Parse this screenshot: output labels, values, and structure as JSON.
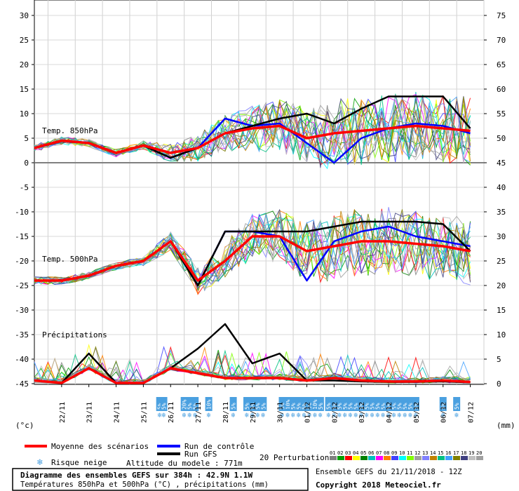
{
  "header": {
    "title": "Diagramme des ensembles GEFS sur 384h : 42.9N 1.1W",
    "subtitle": "Températures 850hPa et 500hPa (°C) , précipitations (mm)",
    "ensemble_info": "Ensemble GEFS du 21/11/2018 - 12Z",
    "copyright": "Copyright 2018 Meteociel.fr"
  },
  "legend": {
    "mean": "Moyenne des scénarios",
    "control": "Run de contrôle",
    "gfs": "Run GFS",
    "snow": "Risque neige",
    "altitude": "Altitude du modele : 771m",
    "perturbations": "20 Perturbations",
    "perturbation_ids": [
      "01",
      "02",
      "03",
      "04",
      "05",
      "06",
      "07",
      "08",
      "09",
      "10",
      "11",
      "12",
      "13",
      "14",
      "15",
      "16",
      "17",
      "18",
      "19",
      "20"
    ],
    "perturbation_colors": [
      "#808080",
      "#00a000",
      "#ff0000",
      "#ffff00",
      "#008000",
      "#00c0c0",
      "#ff00ff",
      "#ff8000",
      "#4040ff",
      "#00ffff",
      "#80ff00",
      "#a0a0a0",
      "#8080ff",
      "#c08000",
      "#00c080",
      "#40a0ff",
      "#808000",
      "#404080",
      "#c0c0c0",
      "#a0a0a0"
    ],
    "colors": {
      "mean": "#ff0000",
      "control": "#0000ff",
      "gfs": "#000000"
    }
  },
  "axes": {
    "left_unit": "(°c)",
    "right_unit": "(mm)",
    "left_ticks": [
      "30",
      "25",
      "20",
      "15",
      "10",
      "5",
      "0",
      "-5",
      "-10",
      "-15",
      "-20",
      "-25",
      "-30",
      "-35",
      "-40",
      "-45"
    ],
    "right_ticks": [
      "75",
      "70",
      "65",
      "60",
      "55",
      "50",
      "45",
      "40",
      "35",
      "30",
      "25",
      "20",
      "15",
      "10",
      "5",
      "0"
    ]
  },
  "panels": {
    "t850": "Temp. 850hPa",
    "t500": "Temp. 500hPa",
    "precip": "Précipitations"
  },
  "chart_data": [
    {
      "type": "line",
      "panel": "Temp. 850hPa",
      "ylabel": "(°c)",
      "y_left_range": [
        -10,
        30
      ],
      "x": [
        "21/11 12Z",
        "22/11",
        "23/11",
        "24/11",
        "25/11",
        "26/11",
        "27/11",
        "28/11",
        "29/11",
        "30/11",
        "01/12",
        "02/12",
        "03/12",
        "04/12",
        "05/12",
        "06/12",
        "07/12"
      ],
      "series": [
        {
          "name": "Moyenne des scénarios",
          "values": [
            3,
            4.5,
            4,
            2,
            3.5,
            2,
            3,
            6,
            7,
            7.5,
            5,
            6,
            6.5,
            7,
            7.5,
            7,
            6.5
          ]
        },
        {
          "name": "Run de contrôle",
          "values": [
            3,
            4.5,
            4,
            2,
            3.5,
            1,
            3,
            9,
            7.5,
            8,
            4,
            0,
            5,
            7,
            8,
            7.5,
            6
          ]
        },
        {
          "name": "Run GFS",
          "values": [
            3,
            4.5,
            4,
            2,
            3.5,
            1,
            3,
            6,
            7.5,
            9,
            10,
            8,
            11,
            13.5,
            13.5,
            13.5,
            7
          ]
        }
      ]
    },
    {
      "type": "line",
      "panel": "Temp. 500hPa",
      "y_left_range": [
        -30,
        -10
      ],
      "x": [
        "21/11 12Z",
        "22/11",
        "23/11",
        "24/11",
        "25/11",
        "26/11",
        "27/11",
        "28/11",
        "29/11",
        "30/11",
        "01/12",
        "02/12",
        "03/12",
        "04/12",
        "05/12",
        "06/12",
        "07/12"
      ],
      "series": [
        {
          "name": "Moyenne des scénarios",
          "values": [
            -24,
            -24,
            -23,
            -21,
            -20,
            -16,
            -24,
            -20,
            -15,
            -15,
            -18,
            -17,
            -16,
            -16,
            -16.5,
            -17,
            -18
          ]
        },
        {
          "name": "Run de contrôle",
          "values": [
            -24,
            -24,
            -23,
            -21,
            -20,
            -16,
            -25,
            -14,
            -14,
            -15,
            -24,
            -16,
            -14,
            -13,
            -15,
            -16,
            -17
          ]
        },
        {
          "name": "Run GFS",
          "values": [
            -24,
            -24,
            -23,
            -21,
            -20,
            -16,
            -25,
            -14,
            -14,
            -14,
            -14,
            -13,
            -12,
            -12,
            -12,
            -12.5,
            -18
          ]
        }
      ]
    },
    {
      "type": "line",
      "panel": "Précipitations",
      "ylabel": "(mm)",
      "y_right_range": [
        0,
        15
      ],
      "x": [
        "21/11 12Z",
        "22/11",
        "23/11",
        "24/11",
        "25/11",
        "26/11",
        "27/11",
        "28/11",
        "29/11",
        "30/11",
        "01/12",
        "02/12",
        "03/12",
        "04/12",
        "05/12",
        "06/12",
        "07/12"
      ],
      "series": [
        {
          "name": "Moyenne des scénarios",
          "values": [
            0.5,
            0,
            3,
            0,
            0,
            3,
            2,
            1,
            1,
            1,
            0.5,
            1,
            0.5,
            0.3,
            0.3,
            0.5,
            0.2
          ]
        },
        {
          "name": "Run GFS",
          "values": [
            0.5,
            0,
            6,
            0,
            0,
            3,
            7,
            12,
            4,
            6,
            0.5,
            0.5,
            0.3,
            0.2,
            0.2,
            0.3,
            0.1
          ]
        }
      ]
    }
  ],
  "dates": [
    "22/11",
    "23/11",
    "24/11",
    "25/11",
    "26/11",
    "27/11",
    "28/11",
    "29/11",
    "30/11",
    "01/12",
    "02/12",
    "03/12",
    "04/12",
    "05/12",
    "06/12",
    "07/12"
  ],
  "snow_risk": [
    {
      "day": 4.6,
      "value": "5%"
    },
    {
      "day": 4.75,
      "value": "5%"
    },
    {
      "day": 5.5,
      "value": "20%"
    },
    {
      "day": 5.7,
      "value": "5%"
    },
    {
      "day": 5.9,
      "value": "5%"
    },
    {
      "day": 6.4,
      "value": "10%"
    },
    {
      "day": 7.3,
      "value": "5%"
    },
    {
      "day": 7.8,
      "value": "5%"
    },
    {
      "day": 8.0,
      "value": "5%"
    },
    {
      "day": 8.2,
      "value": "5%"
    },
    {
      "day": 8.4,
      "value": "5%"
    },
    {
      "day": 9.1,
      "value": "5%"
    },
    {
      "day": 9.3,
      "value": "10%"
    },
    {
      "day": 9.5,
      "value": "5%"
    },
    {
      "day": 9.7,
      "value": "5%"
    },
    {
      "day": 9.9,
      "value": "5%"
    },
    {
      "day": 10.1,
      "value": "5%"
    },
    {
      "day": 10.3,
      "value": "10%"
    },
    {
      "day": 10.5,
      "value": "5%"
    },
    {
      "day": 10.8,
      "value": "5%"
    },
    {
      "day": 11.0,
      "value": "5%"
    },
    {
      "day": 11.2,
      "value": "5%"
    },
    {
      "day": 11.4,
      "value": "5%"
    },
    {
      "day": 11.6,
      "value": "5%"
    },
    {
      "day": 11.8,
      "value": "5%"
    },
    {
      "day": 12.0,
      "value": "5%"
    },
    {
      "day": 12.2,
      "value": "5%"
    },
    {
      "day": 12.4,
      "value": "5%"
    },
    {
      "day": 12.6,
      "value": "5%"
    },
    {
      "day": 12.8,
      "value": "5%"
    },
    {
      "day": 13.0,
      "value": "5%"
    },
    {
      "day": 13.2,
      "value": "5%"
    },
    {
      "day": 13.4,
      "value": "5%"
    },
    {
      "day": 13.6,
      "value": "5%"
    },
    {
      "day": 13.8,
      "value": "5%"
    },
    {
      "day": 14.0,
      "value": "5%"
    },
    {
      "day": 15.0,
      "value": "5%"
    },
    {
      "day": 15.5,
      "value": "5%"
    }
  ]
}
